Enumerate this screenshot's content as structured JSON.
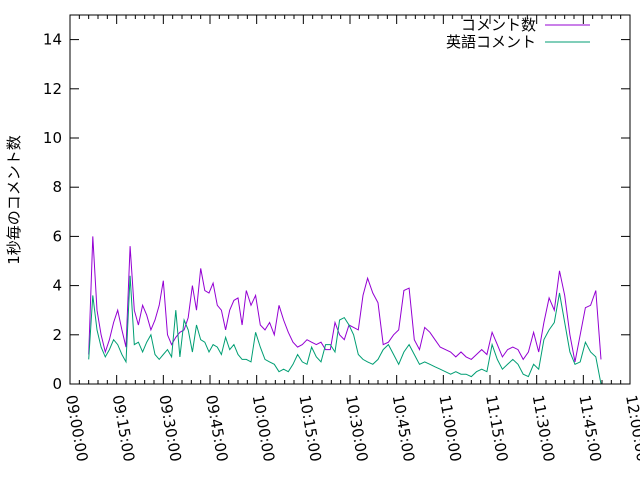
{
  "chart_data": {
    "type": "line",
    "title": "",
    "xlabel": "",
    "ylabel": "1秒毎のコメント数",
    "ylim": [
      0,
      15
    ],
    "yticks": [
      "0",
      "2",
      "4",
      "6",
      "8",
      "10",
      "12",
      "14"
    ],
    "xlim": [
      "09:00:00",
      "12:00:00"
    ],
    "xticks": [
      "09:00:00",
      "09:15:00",
      "09:30:00",
      "09:45:00",
      "10:00:00",
      "10:15:00",
      "10:30:00",
      "10:45:00",
      "11:00:00",
      "11:15:00",
      "11:30:00",
      "11:45:00",
      "12:00:00"
    ],
    "grid": false,
    "legend_position": "top-right",
    "x": [
      "09:06:00",
      "09:07:20",
      "09:08:40",
      "09:10:00",
      "09:11:20",
      "09:12:40",
      "09:14:00",
      "09:15:20",
      "09:16:40",
      "09:18:00",
      "09:19:20",
      "09:20:40",
      "09:22:00",
      "09:23:20",
      "09:24:40",
      "09:26:00",
      "09:27:20",
      "09:28:40",
      "09:30:00",
      "09:31:20",
      "09:32:40",
      "09:34:00",
      "09:35:20",
      "09:36:40",
      "09:38:00",
      "09:39:20",
      "09:40:40",
      "09:42:00",
      "09:43:20",
      "09:44:40",
      "09:46:00",
      "09:47:20",
      "09:48:40",
      "09:50:00",
      "09:51:20",
      "09:52:40",
      "09:54:00",
      "09:55:20",
      "09:56:40",
      "09:58:10",
      "09:59:40",
      "10:01:10",
      "10:02:40",
      "10:04:10",
      "10:05:40",
      "10:07:10",
      "10:08:40",
      "10:10:10",
      "10:11:40",
      "10:13:10",
      "10:14:40",
      "10:16:10",
      "10:17:40",
      "10:19:10",
      "10:20:40",
      "10:22:10",
      "10:23:40",
      "10:25:10",
      "10:26:40",
      "10:28:10",
      "10:29:40",
      "10:31:10",
      "10:32:40",
      "10:34:10",
      "10:35:40",
      "10:37:20",
      "10:39:00",
      "10:40:40",
      "10:42:20",
      "10:44:00",
      "10:45:40",
      "10:47:20",
      "10:49:00",
      "10:50:40",
      "10:52:20",
      "10:54:00",
      "10:55:40",
      "10:57:20",
      "10:59:00",
      "11:00:40",
      "11:02:20",
      "11:04:00",
      "11:05:40",
      "11:07:20",
      "11:09:00",
      "11:10:40",
      "11:12:20",
      "11:14:00",
      "11:15:40",
      "11:17:20",
      "11:19:00",
      "11:20:40",
      "11:22:20",
      "11:24:00",
      "11:25:40",
      "11:27:20",
      "11:29:00",
      "11:30:40",
      "11:32:20",
      "11:34:00",
      "11:35:40",
      "11:37:20",
      "11:39:00",
      "11:40:40",
      "11:42:20",
      "11:44:00",
      "11:45:40",
      "11:47:20",
      "11:49:00",
      "11:50:40"
    ],
    "series": [
      {
        "name": "コメント数",
        "color": "#9400d3",
        "values": [
          1.2,
          6.0,
          3.0,
          2.0,
          1.3,
          1.8,
          2.5,
          3.0,
          2.2,
          1.5,
          5.6,
          3.0,
          2.4,
          3.2,
          2.8,
          2.2,
          2.6,
          3.2,
          4.2,
          2.0,
          1.6,
          1.9,
          2.1,
          2.2,
          2.7,
          4.0,
          3.0,
          4.7,
          3.8,
          3.7,
          4.1,
          3.2,
          3.0,
          2.2,
          3.0,
          3.4,
          3.5,
          2.4,
          3.8,
          3.2,
          3.6,
          2.4,
          2.2,
          2.5,
          2.0,
          3.2,
          2.6,
          2.1,
          1.7,
          1.5,
          1.6,
          1.8,
          1.7,
          1.6,
          1.7,
          1.4,
          1.4,
          2.5,
          2.0,
          1.8,
          2.4,
          2.3,
          2.2,
          3.6,
          4.3,
          3.7,
          3.3,
          1.6,
          1.7,
          2.0,
          2.2,
          3.8,
          3.9,
          1.8,
          1.4,
          2.3,
          2.1,
          1.8,
          1.5,
          1.4,
          1.3,
          1.1,
          1.3,
          1.1,
          1.0,
          1.2,
          1.4,
          1.2,
          2.1,
          1.6,
          1.1,
          1.4,
          1.5,
          1.4,
          1.0,
          1.3,
          2.1,
          1.3,
          2.5,
          3.5,
          3.0,
          4.6,
          3.6,
          2.0,
          0.9,
          2.0,
          3.1,
          3.2,
          3.8,
          1.0
        ]
      },
      {
        "name": "英語コメント",
        "color": "#009e73",
        "values": [
          1.0,
          3.6,
          2.2,
          1.5,
          1.1,
          1.4,
          1.8,
          1.6,
          1.2,
          0.9,
          4.4,
          1.6,
          1.7,
          1.3,
          1.7,
          2.0,
          1.2,
          1.0,
          1.2,
          1.4,
          1.1,
          3.0,
          1.1,
          2.6,
          2.2,
          1.3,
          2.4,
          1.8,
          1.7,
          1.3,
          1.6,
          1.5,
          1.2,
          1.9,
          1.4,
          1.6,
          1.2,
          1.0,
          1.0,
          0.9,
          2.1,
          1.5,
          1.0,
          0.9,
          0.8,
          0.5,
          0.6,
          0.5,
          0.8,
          1.2,
          0.9,
          0.8,
          1.5,
          1.1,
          0.9,
          1.6,
          1.6,
          1.3,
          2.6,
          2.7,
          2.4,
          2.0,
          1.2,
          1.0,
          0.9,
          0.8,
          1.0,
          1.4,
          1.6,
          1.2,
          0.8,
          1.3,
          1.6,
          1.2,
          0.8,
          0.9,
          0.8,
          0.7,
          0.6,
          0.5,
          0.4,
          0.5,
          0.4,
          0.4,
          0.3,
          0.5,
          0.6,
          0.5,
          1.6,
          1.0,
          0.6,
          0.8,
          1.0,
          0.8,
          0.4,
          0.3,
          0.8,
          0.6,
          1.8,
          2.2,
          2.5,
          3.7,
          2.5,
          1.3,
          0.8,
          0.9,
          1.7,
          1.3,
          1.1,
          0.0
        ]
      }
    ]
  }
}
